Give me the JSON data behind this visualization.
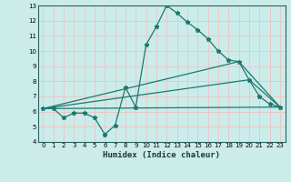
{
  "xlabel": "Humidex (Indice chaleur)",
  "background_color": "#ccecea",
  "grid_color": "#e8c8c8",
  "line_color": "#1a7a6e",
  "xlim": [
    -0.5,
    23.5
  ],
  "ylim": [
    4,
    13
  ],
  "xticks": [
    0,
    1,
    2,
    3,
    4,
    5,
    6,
    7,
    8,
    9,
    10,
    11,
    12,
    13,
    14,
    15,
    16,
    17,
    18,
    19,
    20,
    21,
    22,
    23
  ],
  "yticks": [
    4,
    5,
    6,
    7,
    8,
    9,
    10,
    11,
    12,
    13
  ],
  "line1_x": [
    0,
    1,
    2,
    3,
    4,
    5,
    6,
    7,
    8,
    9,
    10,
    11,
    12,
    13,
    14,
    15,
    16,
    17,
    18,
    19,
    20,
    21,
    22,
    23
  ],
  "line1_y": [
    6.2,
    6.2,
    5.6,
    5.9,
    5.9,
    5.6,
    4.5,
    5.1,
    7.6,
    6.3,
    10.4,
    11.6,
    13.0,
    12.5,
    11.9,
    11.4,
    10.8,
    10.0,
    9.4,
    9.3,
    8.1,
    7.0,
    6.5,
    6.3
  ],
  "line2_x": [
    0,
    23
  ],
  "line2_y": [
    6.2,
    6.3
  ],
  "line3_x": [
    0,
    20,
    23
  ],
  "line3_y": [
    6.2,
    8.1,
    6.3
  ],
  "line4_x": [
    0,
    19,
    23
  ],
  "line4_y": [
    6.2,
    9.3,
    6.3
  ]
}
